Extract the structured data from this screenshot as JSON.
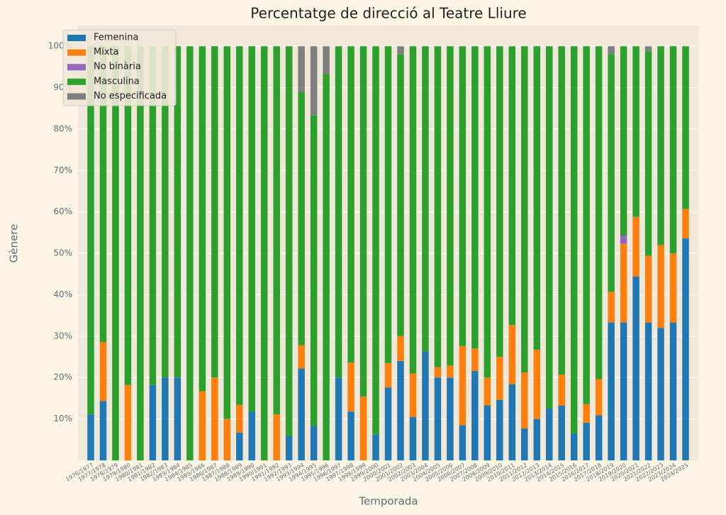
{
  "chart_data": {
    "type": "stacked_bar",
    "title": "Percentatge de direcció al Teatre Lliure",
    "x_label": "Temporada",
    "y_label": "Gènere",
    "categories": [
      "1976/1977",
      "1977/1978",
      "1978/1979",
      "1979/1980",
      "1980/1981",
      "1981/1982",
      "1982/1983",
      "1983/1984",
      "1984/1985",
      "1985/1986",
      "1986/1987",
      "1987/1988",
      "1988/1989",
      "1989/1990",
      "1990/1991",
      "1991/1992",
      "1992/1993",
      "1993/1994",
      "1994/1995",
      "1995/1996",
      "1996/1997",
      "1997/1998",
      "1998/1999",
      "1999/2000",
      "2000/2001",
      "2001/2002",
      "2002/2003",
      "2003/2004",
      "2004/2005",
      "2005/2006",
      "2006/2007",
      "2007/2008",
      "2008/2009",
      "2009/2010",
      "2010/2011",
      "2011/2012",
      "2012/2013",
      "2013/2014",
      "2014/2015",
      "2015/2016",
      "2016/2017",
      "2017/2018",
      "2018/2019",
      "2019/2020",
      "2020/2021",
      "2021/2022",
      "2022/2023",
      "2023/2024",
      "2024/2025"
    ],
    "series": [
      {
        "name": "Femenina",
        "color": "#1f77b4",
        "values": [
          11.1,
          14.3,
          0,
          0,
          0,
          18.2,
          20,
          20,
          0,
          0,
          0,
          0,
          6.7,
          11.8,
          0,
          0,
          5.9,
          22.2,
          8.3,
          0,
          20,
          11.8,
          0,
          6.3,
          17.6,
          24,
          10.5,
          26.3,
          20,
          20,
          8.5,
          21.6,
          13.3,
          14.6,
          18.4,
          7.7,
          10,
          12.5,
          13.2,
          6.5,
          9.1,
          10.9,
          33.3,
          33.3,
          44.4,
          33.3,
          32,
          33.3,
          53.6
        ]
      },
      {
        "name": "Mixta",
        "color": "#ff7f0e",
        "values": [
          0,
          14.3,
          0,
          18.2,
          0,
          0,
          0,
          0,
          0,
          16.7,
          20,
          10,
          6.7,
          0,
          0,
          11.1,
          0,
          5.6,
          0,
          0,
          0,
          11.8,
          15.4,
          0,
          5.9,
          6,
          10.5,
          0,
          2.5,
          2.9,
          19.1,
          5.4,
          6.7,
          10.4,
          14.3,
          13.5,
          16.7,
          0,
          7.5,
          0,
          4.5,
          8.7,
          7.4,
          19,
          14.4,
          16.1,
          20,
          16.7,
          7.1
        ]
      },
      {
        "name": "No binària",
        "color": "#9467bd",
        "values": [
          0,
          0,
          0,
          0,
          0,
          0,
          0,
          0,
          0,
          0,
          0,
          0,
          0,
          0,
          0,
          0,
          0,
          0,
          0,
          0,
          0,
          0,
          0,
          0,
          0,
          0,
          0,
          0,
          0,
          0,
          0,
          0,
          0,
          0,
          0,
          0,
          0,
          0,
          0,
          0,
          0,
          0,
          0,
          2,
          0,
          0,
          0,
          0,
          0
        ]
      },
      {
        "name": "Masculina",
        "color": "#2ca02c",
        "values": [
          88.9,
          71.4,
          100,
          81.8,
          100,
          81.8,
          80,
          80,
          100,
          83.3,
          80,
          90,
          86.6,
          88.2,
          100,
          88.9,
          94.1,
          61.1,
          75,
          93.3,
          80,
          76.4,
          84.6,
          93.7,
          76.5,
          68,
          79,
          73.7,
          77.5,
          77.1,
          72.4,
          73,
          80,
          75,
          67.3,
          78.8,
          73.3,
          87.5,
          79.3,
          93.5,
          86.4,
          80.4,
          57.4,
          45.7,
          41.2,
          49.4,
          48,
          50,
          39.3
        ]
      },
      {
        "name": "No especificada",
        "color": "#7f7f7f",
        "values": [
          0,
          0,
          0,
          0,
          0,
          0,
          0,
          0,
          0,
          0,
          0,
          0,
          0,
          0,
          0,
          0,
          0,
          11.1,
          16.7,
          6.7,
          0,
          0,
          0,
          0,
          0,
          2,
          0,
          0,
          0,
          0,
          0,
          0,
          0,
          0,
          0,
          0,
          0,
          0,
          0,
          0,
          0,
          0,
          1.9,
          0,
          0,
          1.2,
          0,
          0,
          0
        ]
      }
    ],
    "ylim": [
      0,
      105
    ],
    "yticks": [
      {
        "value": 10,
        "label": "10%"
      },
      {
        "value": 20,
        "label": "20%"
      },
      {
        "value": 30,
        "label": "30%"
      },
      {
        "value": 40,
        "label": "40%"
      },
      {
        "value": 50,
        "label": "50%"
      },
      {
        "value": 60,
        "label": "60%"
      },
      {
        "value": 70,
        "label": "70%"
      },
      {
        "value": 80,
        "label": "80%"
      },
      {
        "value": 90,
        "label": "90%"
      },
      {
        "value": 100,
        "label": "100%"
      }
    ],
    "grid": true,
    "legend": "upper left"
  }
}
